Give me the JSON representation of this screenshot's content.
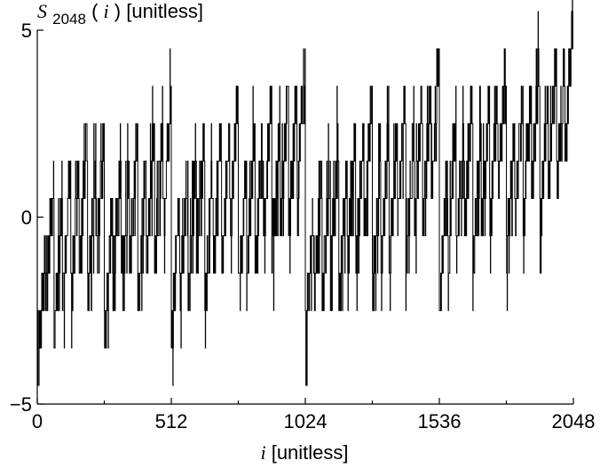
{
  "chart_data": {
    "type": "line",
    "title": "",
    "ylabel": {
      "symbol": "S",
      "subscript": "2048",
      "open_paren": "(",
      "variable": "i",
      "close_and_unit": ") [unitless]"
    },
    "xlabel": {
      "variable": "i",
      "unit": " [unitless]"
    },
    "xlim": [
      0,
      2048
    ],
    "ylim": [
      -5,
      5
    ],
    "x_ticks": [
      0,
      512,
      1024,
      1536,
      2048
    ],
    "x_tick_labels": [
      "0",
      "512",
      "1024",
      "1536",
      "2048"
    ],
    "x_minor_ticks": [
      256,
      768,
      1280,
      1792
    ],
    "y_ticks": [
      -5,
      0,
      5
    ],
    "y_tick_labels": [
      "−5",
      "0",
      "5"
    ],
    "grid": false,
    "series": [
      {
        "step": 1,
        "bins": 256,
        "envelope_lo": [
          -4.5,
          -3.5,
          -2.5,
          -1.5,
          -2.5,
          -1.5,
          -0.5,
          0.5,
          -3.5,
          -2.5,
          -1.5,
          -0.5,
          -2.5,
          -1.5,
          -0.5,
          0.5,
          -2.5,
          -1.5,
          -0.5,
          0.5,
          -1.5,
          -0.5,
          0.5,
          1.5,
          -2.5,
          -1.5,
          -0.5,
          0.5,
          -1.5,
          -0.5,
          0.5,
          1.5,
          -3.5,
          -2.5,
          -1.5,
          -0.5,
          -2.5,
          -1.5,
          -0.5,
          0.5,
          -2.5,
          -1.5,
          -0.5,
          0.5,
          -1.5,
          -0.5,
          0.5,
          1.5,
          -2.5,
          -1.5,
          -0.5,
          0.5,
          -1.5,
          -0.5,
          0.5,
          1.5,
          -1.5,
          -0.5,
          0.5,
          1.5,
          -0.5,
          0.5,
          1.5,
          2.5,
          -3.5,
          -2.5,
          -1.5,
          -0.5,
          -2.5,
          -1.5,
          -0.5,
          0.5,
          -2.5,
          -1.5,
          -0.5,
          0.5,
          -1.5,
          -0.5,
          0.5,
          1.5,
          -2.5,
          -1.5,
          -0.5,
          0.5,
          -1.5,
          -0.5,
          0.5,
          1.5,
          -1.5,
          -0.5,
          0.5,
          1.5,
          -0.5,
          0.5,
          1.5,
          2.5,
          -2.5,
          -1.5,
          -0.5,
          0.5,
          -1.5,
          -0.5,
          0.5,
          1.5,
          -1.5,
          -0.5,
          0.5,
          1.5,
          -0.5,
          0.5,
          1.5,
          2.5,
          -1.5,
          -0.5,
          0.5,
          1.5,
          -0.5,
          0.5,
          1.5,
          2.5,
          -0.5,
          0.5,
          1.5,
          2.5,
          0.5,
          1.5,
          2.5,
          3.5,
          -3.5,
          -2.5,
          -1.5,
          -0.5,
          -2.5,
          -1.5,
          -0.5,
          0.5,
          -2.5,
          -1.5,
          -0.5,
          0.5,
          -1.5,
          -0.5,
          0.5,
          1.5,
          -2.5,
          -1.5,
          -0.5,
          0.5,
          -1.5,
          -0.5,
          0.5,
          1.5,
          -1.5,
          -0.5,
          0.5,
          1.5,
          -0.5,
          0.5,
          1.5,
          2.5,
          -2.5,
          -1.5,
          -0.5,
          0.5,
          -1.5,
          -0.5,
          0.5,
          1.5,
          -1.5,
          -0.5,
          0.5,
          1.5,
          -0.5,
          0.5,
          1.5,
          2.5,
          -1.5,
          -0.5,
          0.5,
          1.5,
          -0.5,
          0.5,
          1.5,
          2.5,
          -0.5,
          0.5,
          1.5,
          2.5,
          0.5,
          1.5,
          2.5,
          3.5,
          -2.5,
          -1.5,
          -0.5,
          0.5,
          -1.5,
          -0.5,
          0.5,
          1.5,
          -1.5,
          -0.5,
          0.5,
          1.5,
          -0.5,
          0.5,
          1.5,
          2.5,
          -1.5,
          -0.5,
          0.5,
          1.5,
          -0.5,
          0.5,
          1.5,
          2.5,
          -0.5,
          0.5,
          1.5,
          2.5,
          0.5,
          1.5,
          2.5,
          3.5,
          -1.5,
          -0.5,
          0.5,
          1.5,
          -0.5,
          0.5,
          1.5,
          2.5,
          -0.5,
          0.5,
          1.5,
          2.5,
          0.5,
          1.5,
          2.5,
          3.5,
          -0.5,
          0.5,
          1.5,
          2.5,
          0.5,
          1.5,
          2.5,
          3.5,
          0.5,
          1.5,
          2.5,
          3.5,
          1.5,
          2.5,
          3.5,
          4.5
        ]
      }
    ]
  }
}
